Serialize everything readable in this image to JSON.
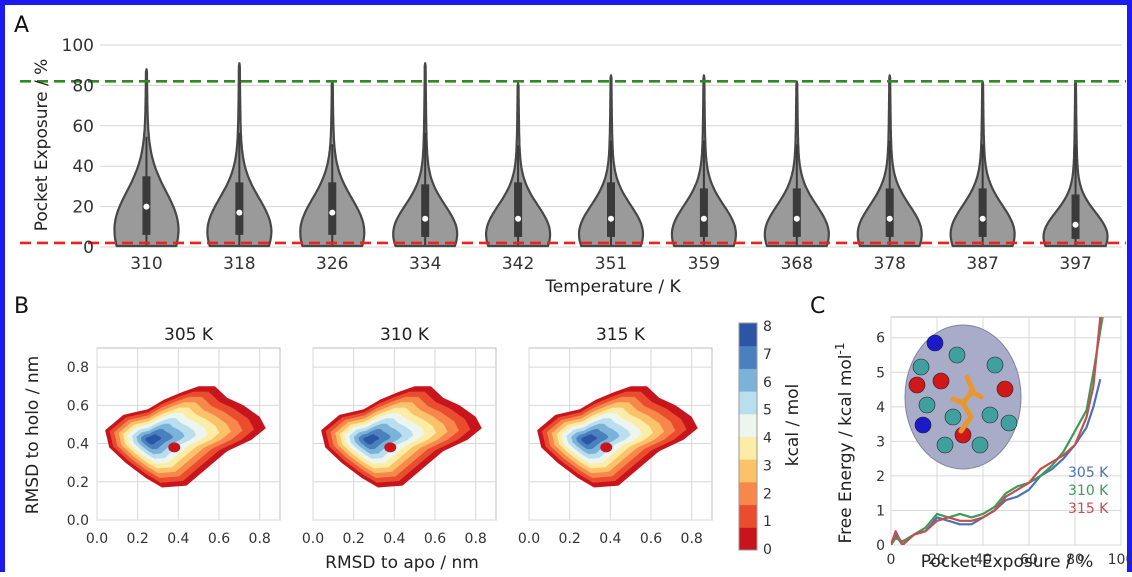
{
  "chart_data": [
    {
      "panel": "A",
      "type": "violin",
      "xlabel": "Temperature / K",
      "ylabel": "Pocket Exposure / %",
      "ylim": [
        0,
        100
      ],
      "yticks": [
        0,
        20,
        40,
        60,
        80,
        100
      ],
      "categories": [
        "310",
        "318",
        "326",
        "334",
        "342",
        "351",
        "359",
        "368",
        "378",
        "387",
        "397"
      ],
      "max": [
        88,
        91,
        82,
        91,
        81,
        85,
        85,
        82,
        85,
        82,
        82
      ],
      "median": [
        20,
        17,
        17,
        14,
        14,
        14,
        14,
        14,
        14,
        14,
        11
      ],
      "q1": [
        6,
        6,
        6,
        5,
        5,
        5,
        5,
        5,
        5,
        5,
        4
      ],
      "q3": [
        35,
        32,
        32,
        31,
        32,
        32,
        29,
        29,
        29,
        29,
        26
      ],
      "hlines": [
        {
          "value": 82,
          "color": "#2e8b22",
          "style": "dashed"
        },
        {
          "value": 2,
          "color": "#e8231e",
          "style": "dashed"
        }
      ],
      "grid": true
    },
    {
      "panel": "B",
      "type": "contour",
      "titles": [
        "305 K",
        "310 K",
        "315 K"
      ],
      "xlabel": "RMSD to apo / nm",
      "ylabel": "RMSD to holo / nm",
      "xticks": [
        "0.0",
        "0.2",
        "0.4",
        "0.6",
        "0.8"
      ],
      "yticks": [
        "0.0",
        "0.2",
        "0.4",
        "0.6",
        "0.8"
      ],
      "xlim": [
        0.0,
        0.9
      ],
      "ylim": [
        0.0,
        0.9
      ],
      "colorbar": {
        "label": "kcal / mol",
        "ticks": [
          "0",
          "1",
          "2",
          "3",
          "4",
          "5",
          "6",
          "7",
          "8"
        ],
        "colors": [
          "#c8141d",
          "#ea4d2e",
          "#f7874a",
          "#fcc26a",
          "#fdeca6",
          "#ecf6ee",
          "#b8def0",
          "#7ab2d8",
          "#4a80bd",
          "#2c56a5"
        ]
      },
      "grid": true
    },
    {
      "panel": "C",
      "type": "line",
      "xlabel": "Pocket Exposure / %",
      "ylabel": "Free Energy / kcal mol",
      "ylabel_sup": "-1",
      "xlim": [
        0,
        100
      ],
      "ylim": [
        0,
        6.6
      ],
      "xticks": [
        "0",
        "20",
        "40",
        "60",
        "80",
        "100"
      ],
      "yticks": [
        "0",
        "1",
        "2",
        "3",
        "4",
        "5",
        "6"
      ],
      "series": [
        {
          "name": "305 K",
          "color": "#4a72b8",
          "x": [
            0,
            2,
            5,
            10,
            15,
            20,
            25,
            30,
            35,
            40,
            45,
            50,
            55,
            60,
            65,
            70,
            75,
            80,
            85,
            88,
            91
          ],
          "y": [
            0.0,
            0.3,
            0.0,
            0.3,
            0.4,
            0.8,
            0.7,
            0.6,
            0.6,
            0.8,
            1.0,
            1.3,
            1.4,
            1.6,
            2.0,
            2.2,
            2.5,
            2.9,
            3.4,
            4.0,
            4.8
          ]
        },
        {
          "name": "310 K",
          "color": "#3e9a55",
          "x": [
            0,
            2,
            5,
            10,
            15,
            20,
            25,
            30,
            35,
            40,
            45,
            50,
            55,
            60,
            65,
            70,
            75,
            80,
            85,
            88,
            92
          ],
          "y": [
            0.0,
            0.2,
            0.1,
            0.3,
            0.5,
            0.9,
            0.8,
            0.9,
            0.8,
            0.9,
            1.1,
            1.5,
            1.7,
            1.8,
            2.0,
            2.3,
            2.7,
            3.3,
            3.9,
            5.0,
            6.6
          ]
        },
        {
          "name": "315 K",
          "color": "#c44e52",
          "x": [
            0,
            2,
            5,
            10,
            15,
            20,
            25,
            30,
            35,
            40,
            45,
            50,
            55,
            60,
            65,
            70,
            75,
            80,
            85,
            88,
            91
          ],
          "y": [
            0.0,
            0.4,
            0.0,
            0.3,
            0.4,
            0.7,
            0.8,
            0.7,
            0.7,
            0.8,
            1.0,
            1.4,
            1.6,
            1.8,
            2.2,
            2.4,
            2.6,
            2.9,
            3.7,
            4.6,
            6.6
          ]
        }
      ],
      "grid": true
    }
  ]
}
